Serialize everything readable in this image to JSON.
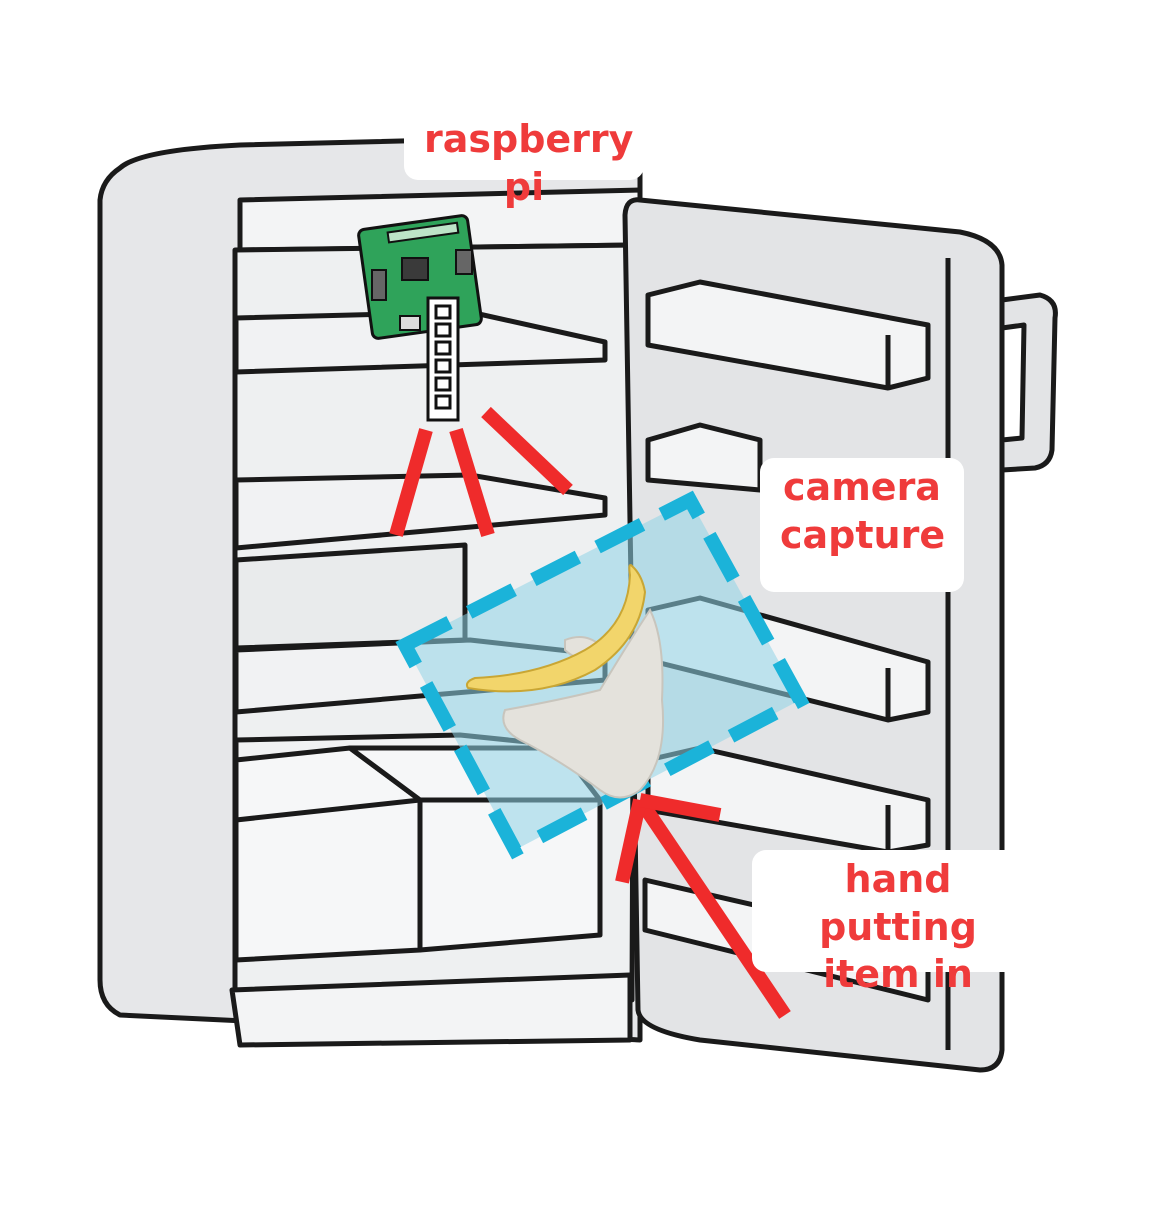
{
  "labels": {
    "raspberry_pi": "raspberry pi",
    "camera_capture": [
      "camera",
      "capture"
    ],
    "hand_putting_item_in": [
      "hand putting",
      "item in"
    ]
  },
  "colors": {
    "annotation_red": "#ef2b2b",
    "capture_frame": "#1bb3d9",
    "capture_fill": "#8fd3e6",
    "fridge_fill": "#e6e7e9",
    "fridge_line": "#1a1a1a",
    "board_green": "#2fa35a",
    "banana": "#f2d56b",
    "hand": "#e4e2dc"
  },
  "icons": [
    "fridge-icon",
    "raspberry-pi-board-icon",
    "camera-ribbon-icon",
    "banana-icon",
    "hand-icon"
  ]
}
